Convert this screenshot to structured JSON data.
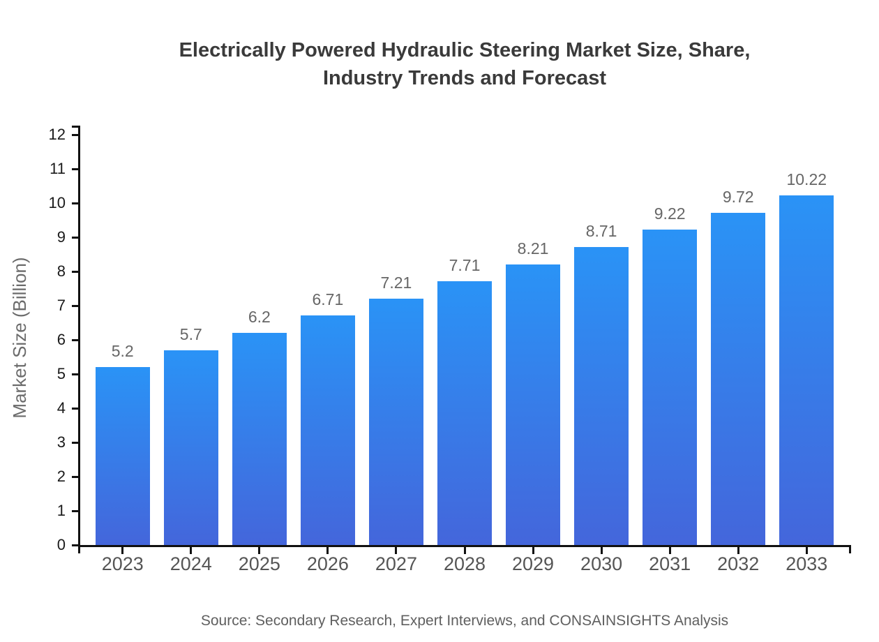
{
  "chart_data": {
    "type": "bar",
    "title": "Electrically Powered Hydraulic Steering Market Size, Share, Industry Trends and Forecast",
    "title_lines": [
      "Electrically Powered Hydraulic Steering Market Size, Share,",
      "Industry Trends and Forecast"
    ],
    "categories": [
      "2023",
      "2024",
      "2025",
      "2026",
      "2027",
      "2028",
      "2029",
      "2030",
      "2031",
      "2032",
      "2033"
    ],
    "values": [
      5.2,
      5.7,
      6.2,
      6.71,
      7.21,
      7.71,
      8.21,
      8.71,
      9.22,
      9.72,
      10.22
    ],
    "value_labels": [
      "5.2",
      "5.7",
      "6.2",
      "6.71",
      "7.21",
      "7.71",
      "8.21",
      "8.71",
      "9.22",
      "9.72",
      "10.22"
    ],
    "xlabel": "",
    "ylabel": "Market Size (Billion)",
    "ylim": [
      0,
      12.264
    ],
    "yticks": [
      0,
      1,
      2,
      3,
      4,
      5,
      6,
      7,
      8,
      9,
      10,
      11,
      12
    ],
    "grid": false,
    "legend_position": "none",
    "bar_color_top": "#2a93f6",
    "bar_color_bottom": "#4466db",
    "axis_color": "#111111",
    "source": "Source: Secondary Research, Expert Interviews, and CONSAINSIGHTS Analysis"
  }
}
